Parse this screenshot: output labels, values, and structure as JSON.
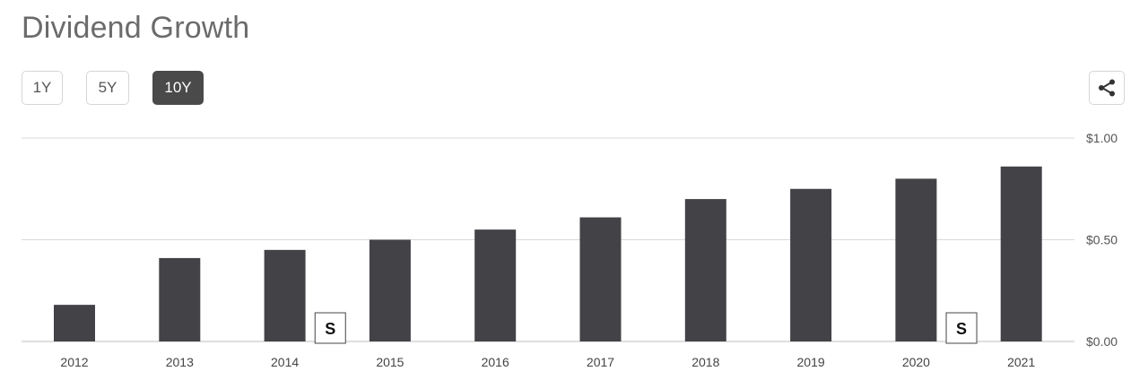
{
  "header": {
    "title": "Dividend Growth"
  },
  "range_buttons": [
    {
      "label": "1Y",
      "active": false
    },
    {
      "label": "5Y",
      "active": false
    },
    {
      "label": "10Y",
      "active": true
    }
  ],
  "share": {
    "icon": "share-icon"
  },
  "colors": {
    "bar": "#434247",
    "active_button": "#4a4a4a",
    "grid": "#d9d9d9"
  },
  "chart_data": {
    "type": "bar",
    "categories": [
      "2012",
      "2013",
      "2014",
      "2015",
      "2016",
      "2017",
      "2018",
      "2019",
      "2020",
      "2021"
    ],
    "values": [
      0.18,
      0.41,
      0.45,
      0.5,
      0.55,
      0.61,
      0.7,
      0.75,
      0.8,
      0.86
    ],
    "ylim": [
      0,
      1.0
    ],
    "yticks": [
      0,
      0.5,
      1.0
    ],
    "ytick_labels": [
      "$0.00",
      "$0.50",
      "$1.00"
    ],
    "grid": true,
    "y_axis_position": "right",
    "annotations": [
      {
        "label": "S",
        "x_between": [
          "2014",
          "2015"
        ]
      },
      {
        "label": "S",
        "x_between": [
          "2020",
          "2021"
        ]
      }
    ]
  }
}
